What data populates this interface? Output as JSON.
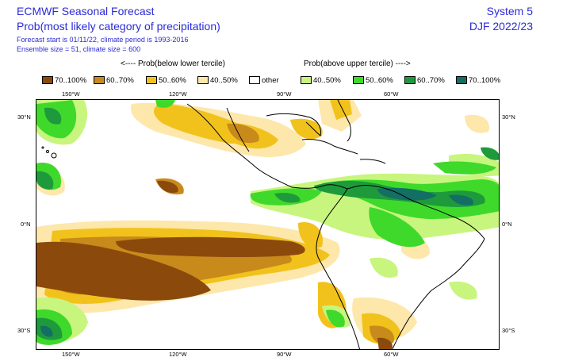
{
  "header": {
    "title": "ECMWF Seasonal Forecast",
    "subtitle": "Prob(most likely category of precipitation)",
    "info_line1": "Forecast start is 01/11/22, climate period is 1993-2016",
    "info_line2": "Ensemble size = 51, climate size = 600",
    "system": "System 5",
    "season": "DJF 2022/23"
  },
  "legend": {
    "below_note": "<---- Prob(below lower tercile)",
    "above_note": "Prob(above upper tercile) ---->",
    "items": [
      {
        "label": "70..100%",
        "color": "#8b4a0c"
      },
      {
        "label": "60..70%",
        "color": "#c88a1a"
      },
      {
        "label": "50..60%",
        "color": "#f2c21c"
      },
      {
        "label": "40..50%",
        "color": "#fde7ab"
      },
      {
        "label": "other",
        "color": "#ffffff"
      },
      {
        "label": "40..50%",
        "color": "#c8f57e"
      },
      {
        "label": "50..60%",
        "color": "#3fd92b"
      },
      {
        "label": "60..70%",
        "color": "#1e9a3c"
      },
      {
        "label": "70..100%",
        "color": "#136f63"
      }
    ]
  },
  "axes": {
    "lon_labels": [
      "150°W",
      "120°W",
      "90°W",
      "60°W"
    ],
    "lat_labels": [
      "30°N",
      "0°N",
      "30°S"
    ]
  }
}
